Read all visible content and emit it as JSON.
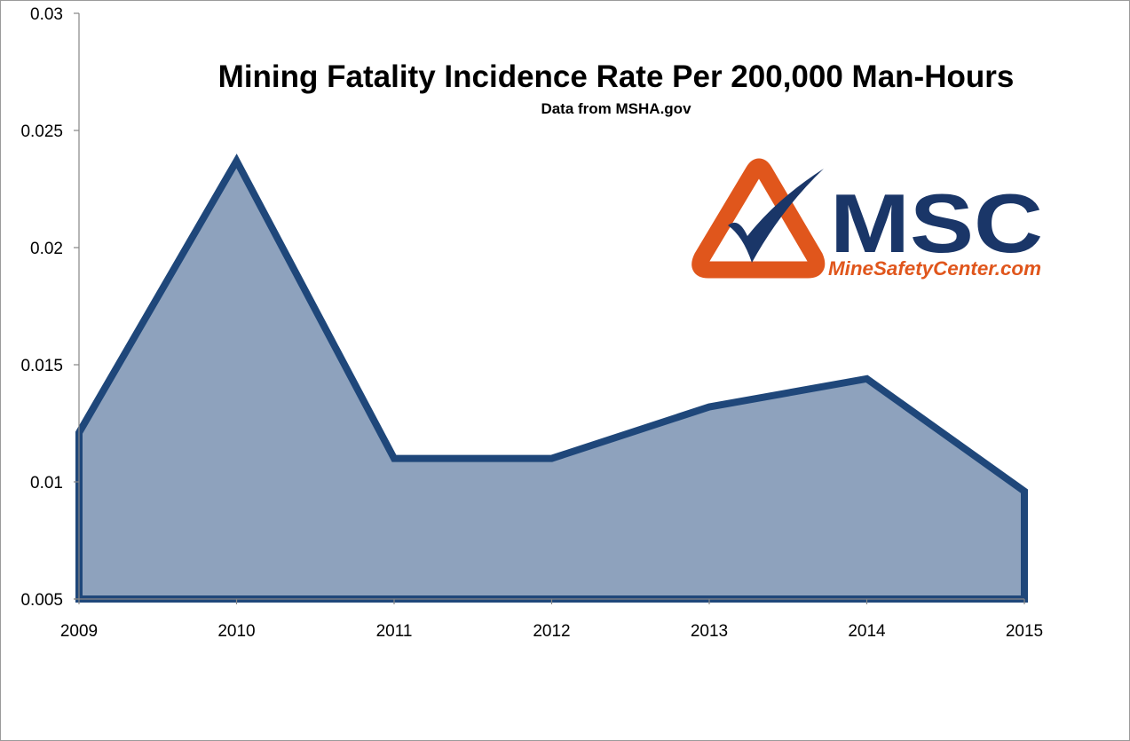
{
  "chart_data": {
    "type": "area",
    "title": "Mining Fatality Incidence Rate Per 200,000 Man-Hours",
    "subtitle": "Data from MSHA.gov",
    "xlabel": "",
    "ylabel": "",
    "x": [
      "2009",
      "2010",
      "2011",
      "2012",
      "2013",
      "2014",
      "2015"
    ],
    "series": [
      {
        "values": [
          0.0121,
          0.0237,
          0.011,
          0.011,
          0.0132,
          0.0144,
          0.0096
        ]
      }
    ],
    "ylim": [
      0.005,
      0.03
    ],
    "yticks": [
      "0.005",
      "0.01",
      "0.015",
      "0.02",
      "0.025",
      "0.03"
    ],
    "grid": false,
    "colors": {
      "fill": "#8ea2bd",
      "line": "#1f477a"
    }
  },
  "logo": {
    "letters": "MSC",
    "site": "MineSafetyCenter.com",
    "colors": {
      "navy": "#1a3668",
      "orange": "#e0561c"
    }
  }
}
